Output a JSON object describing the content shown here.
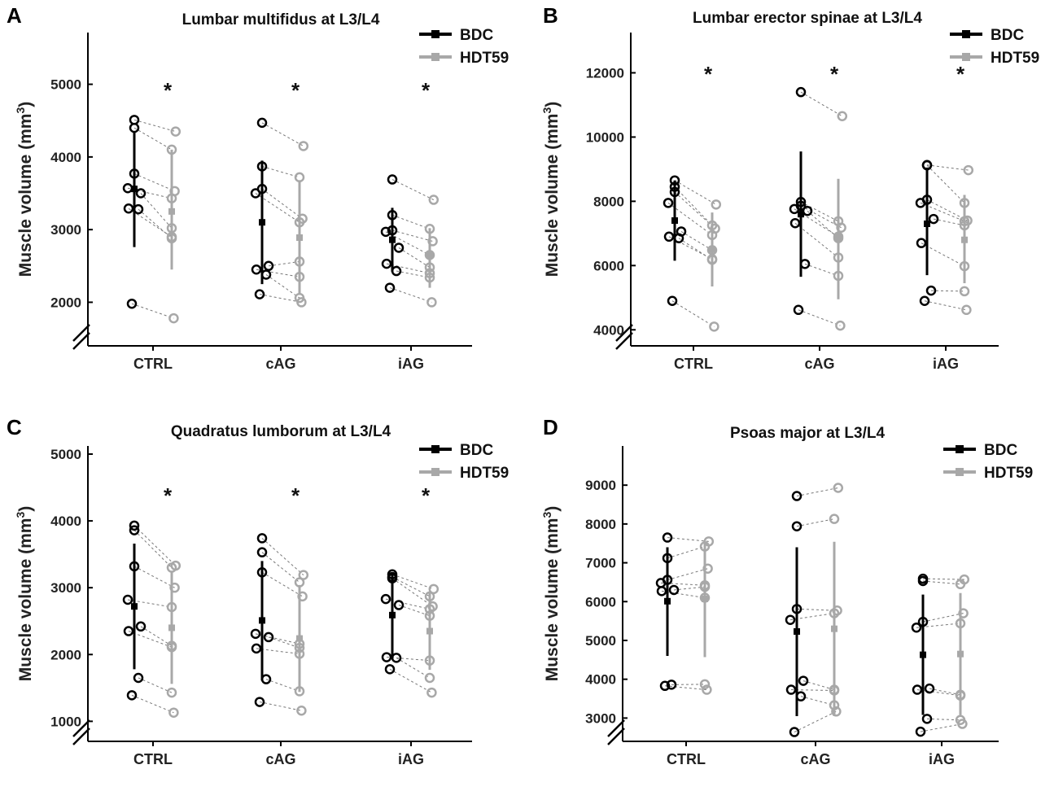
{
  "colors": {
    "bdc": "#000000",
    "hdt59": "#a8a8a8",
    "pair_line": "#777777"
  },
  "chart_data": [
    {
      "panel": "A",
      "type": "scatter",
      "title": "Lumbar multifidus at L3/L4",
      "ylabel": "Muscle volume (mm",
      "ylabel_sup": "3",
      "ylabel_close": ")",
      "categories": [
        "CTRL",
        "cAG",
        "iAG"
      ],
      "ylim": [
        1400,
        5600
      ],
      "yticks": [
        2000,
        3000,
        4000,
        5000
      ],
      "axis_break": true,
      "legend": {
        "position": "top-right",
        "entries": [
          "BDC",
          "HDT59"
        ]
      },
      "significance": [
        "*",
        "*",
        "*"
      ],
      "groups": [
        {
          "bdc": [
            4510,
            4400,
            3770,
            3570,
            3500,
            3290,
            3280,
            1980
          ],
          "hdt59": [
            4350,
            4100,
            3530,
            3430,
            3020,
            2900,
            2880,
            1780
          ],
          "bdc_mean": 3560,
          "bdc_sd_range": [
            2760,
            4350
          ],
          "hdt59_mean": 3250,
          "hdt59_sd_range": [
            2450,
            4100
          ]
        },
        {
          "bdc": [
            4470,
            3870,
            3560,
            3500,
            2500,
            2450,
            2380,
            2110
          ],
          "hdt59": [
            4150,
            3720,
            3150,
            3100,
            2560,
            2350,
            2060,
            2000
          ],
          "bdc_mean": 3100,
          "bdc_sd_range": [
            2250,
            3950
          ],
          "hdt59_mean": 2890,
          "hdt59_sd_range": [
            2100,
            3680
          ]
        },
        {
          "bdc": [
            3690,
            3200,
            2990,
            2970,
            2750,
            2530,
            2430,
            2200
          ],
          "hdt59": [
            3410,
            3010,
            2840,
            2650,
            2480,
            2400,
            2340,
            2000
          ],
          "bdc_mean": 2860,
          "bdc_sd_range": [
            2420,
            3300
          ],
          "hdt59_mean": 2650,
          "hdt59_sd_range": [
            2200,
            3020
          ]
        }
      ]
    },
    {
      "panel": "B",
      "type": "scatter",
      "title": "Lumbar erector spinae at L3/L4",
      "ylabel": "Muscle volume (mm",
      "ylabel_sup": "3",
      "ylabel_close": ")",
      "categories": [
        "CTRL",
        "cAG",
        "iAG"
      ],
      "ylim": [
        3500,
        13000
      ],
      "yticks": [
        4000,
        6000,
        8000,
        10000,
        12000
      ],
      "axis_break": true,
      "legend": {
        "position": "top-right",
        "entries": [
          "BDC",
          "HDT59"
        ]
      },
      "significance": [
        "*",
        "*",
        "*"
      ],
      "groups": [
        {
          "bdc": [
            8650,
            8450,
            8290,
            7950,
            7060,
            6900,
            6850,
            4900
          ],
          "hdt59": [
            7900,
            7250,
            7150,
            6950,
            6480,
            6200,
            6180,
            4100
          ],
          "bdc_mean": 7400,
          "bdc_sd_range": [
            6150,
            8650
          ],
          "hdt59_mean": 6500,
          "hdt59_sd_range": [
            5350,
            7650
          ]
        },
        {
          "bdc": [
            11400,
            7980,
            7860,
            7760,
            7700,
            7320,
            6050,
            4620
          ],
          "hdt59": [
            10650,
            7380,
            7180,
            6900,
            6850,
            6250,
            5680,
            4130
          ],
          "bdc_mean": 7600,
          "bdc_sd_range": [
            5650,
            9550
          ],
          "hdt59_mean": 6850,
          "hdt59_sd_range": [
            4950,
            8700
          ]
        },
        {
          "bdc": [
            9130,
            9120,
            8050,
            7950,
            7450,
            6700,
            5220,
            4900
          ],
          "hdt59": [
            8970,
            7950,
            7400,
            7380,
            7250,
            5980,
            5200,
            4620
          ],
          "bdc_mean": 7300,
          "bdc_sd_range": [
            5700,
            9050
          ],
          "hdt59_mean": 6800,
          "hdt59_sd_range": [
            5450,
            8200
          ]
        }
      ]
    },
    {
      "panel": "C",
      "type": "scatter",
      "title": "Quadratus lumborum at L3/L4",
      "ylabel": "Muscle volume (mm",
      "ylabel_sup": "3",
      "ylabel_close": ")",
      "categories": [
        "CTRL",
        "cAG",
        "iAG"
      ],
      "ylim": [
        700,
        5000
      ],
      "yticks": [
        1000,
        2000,
        3000,
        4000,
        5000
      ],
      "axis_break": true,
      "legend": {
        "position": "top-right",
        "entries": [
          "BDC",
          "HDT59"
        ]
      },
      "significance": [
        "*",
        "*",
        "*"
      ],
      "groups": [
        {
          "bdc": [
            3930,
            3860,
            3320,
            2820,
            2420,
            2350,
            1650,
            1390
          ],
          "hdt59": [
            3330,
            3300,
            3000,
            2710,
            2130,
            2110,
            1430,
            1130
          ],
          "bdc_mean": 2720,
          "bdc_sd_range": [
            1780,
            3660
          ],
          "hdt59_mean": 2400,
          "hdt59_sd_range": [
            1560,
            3230
          ]
        },
        {
          "bdc": [
            3740,
            3530,
            3230,
            2310,
            2260,
            2090,
            1630,
            1290
          ],
          "hdt59": [
            3190,
            3080,
            2870,
            2160,
            2100,
            2010,
            1450,
            1160
          ],
          "bdc_mean": 2510,
          "bdc_sd_range": [
            1610,
            3400
          ],
          "hdt59_mean": 2240,
          "hdt59_sd_range": [
            1440,
            3040
          ]
        },
        {
          "bdc": [
            3200,
            3160,
            3140,
            2830,
            2740,
            1960,
            1950,
            1780
          ],
          "hdt59": [
            2980,
            2870,
            2720,
            2680,
            2580,
            1910,
            1650,
            1430
          ],
          "bdc_mean": 2590,
          "bdc_sd_range": [
            1950,
            3230
          ],
          "hdt59_mean": 2350,
          "hdt59_sd_range": [
            1770,
            2930
          ]
        }
      ]
    },
    {
      "panel": "D",
      "type": "scatter",
      "title": "Psoas major at L3/L4",
      "ylabel": "Muscle volume (mm",
      "ylabel_sup": "3",
      "ylabel_close": ")",
      "categories": [
        "CTRL",
        "cAG",
        "iAG"
      ],
      "ylim": [
        2400,
        9800
      ],
      "yticks": [
        3000,
        4000,
        5000,
        6000,
        7000,
        8000,
        9000
      ],
      "axis_break": true,
      "legend": {
        "position": "top-right",
        "entries": [
          "BDC",
          "HDT59"
        ]
      },
      "significance": [
        "",
        "",
        ""
      ],
      "groups": [
        {
          "bdc": [
            7650,
            7120,
            6560,
            6480,
            6300,
            6270,
            3860,
            3830
          ],
          "hdt59": [
            7550,
            7420,
            6850,
            6420,
            6380,
            6100,
            3870,
            3730
          ],
          "bdc_mean": 6010,
          "bdc_sd_range": [
            4600,
            7400
          ],
          "hdt59_mean": 6070,
          "hdt59_sd_range": [
            4570,
            7550
          ]
        },
        {
          "bdc": [
            8720,
            7940,
            5810,
            5530,
            3960,
            3730,
            3560,
            2640
          ],
          "hdt59": [
            8930,
            8130,
            5770,
            5700,
            3730,
            3710,
            3330,
            3170
          ],
          "bdc_mean": 5230,
          "bdc_sd_range": [
            3050,
            7400
          ],
          "hdt59_mean": 5300,
          "hdt59_sd_range": [
            3050,
            7540
          ]
        },
        {
          "bdc": [
            6590,
            6530,
            5480,
            5330,
            3760,
            3730,
            2980,
            2650
          ],
          "hdt59": [
            6570,
            6450,
            5700,
            5440,
            3600,
            3580,
            2950,
            2850
          ],
          "bdc_mean": 4630,
          "bdc_sd_range": [
            3080,
            6180
          ],
          "hdt59_mean": 4650,
          "hdt59_sd_range": [
            3080,
            6220
          ]
        }
      ]
    }
  ]
}
